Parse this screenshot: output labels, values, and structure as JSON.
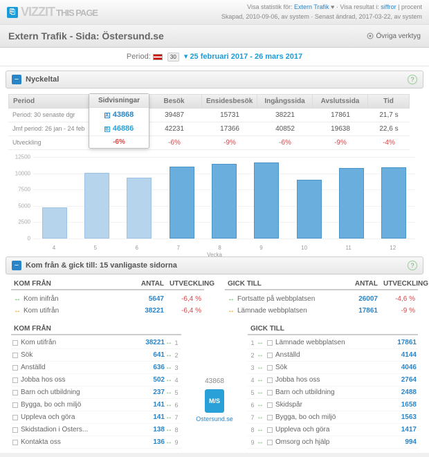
{
  "logo": {
    "text": "VIZZIT",
    "page": "THIS PAGE"
  },
  "topmeta": {
    "line1_a": "Visa statistik för:",
    "line1_link": "Extern Trafik",
    "line1_b": "Visa resultat i:",
    "line1_link2": "siffror",
    "line1_c": "procent",
    "line2": "Skapad, 2010-09-06, av system · Senast ändrad, 2017-03-22, av system"
  },
  "subtitle": "Extern Trafik - Sida: Östersund.se",
  "tools_label": "Övriga verktyg",
  "period": {
    "label": "Period:",
    "badge": "30",
    "dates": "25 februari 2017 - 26 mars 2017"
  },
  "nyckel": {
    "title": "Nyckeltal",
    "cols": [
      "Period",
      "Sidvisningar",
      "Besök",
      "Ensidesbesök",
      "Ingångssida",
      "Avslutssida",
      "Tid"
    ],
    "row1_lbl": "Period: 30 senaste dgr",
    "row2_lbl": "Jmf period: 26 jan - 24 feb",
    "row3_lbl": "Utveckling",
    "r1": [
      "43868",
      "39487",
      "15731",
      "38221",
      "17861",
      "21,7 s"
    ],
    "r2": [
      "46886",
      "42231",
      "17366",
      "40852",
      "19638",
      "22,6 s"
    ],
    "dev": [
      "-6%",
      "-6%",
      "-9%",
      "-6%",
      "-9%",
      "-4%"
    ],
    "popA": "A 43868",
    "popB": "B 46886"
  },
  "chart": {
    "ymax": 12500,
    "ystep": 2500,
    "yticks": [
      "0",
      "2500",
      "5000",
      "7500",
      "10000",
      "12500"
    ],
    "x": [
      "4",
      "5",
      "6",
      "7",
      "8",
      "9",
      "10",
      "11",
      "12"
    ],
    "xtitle": "Vecka",
    "vals": [
      4800,
      10100,
      9300,
      11000,
      11400,
      11700,
      9000,
      10800,
      10900
    ],
    "dark": [
      false,
      false,
      false,
      true,
      true,
      true,
      true,
      true,
      true
    ]
  },
  "kom": {
    "title": "Kom från & gick till: 15 vanligaste sidorna",
    "left_hd": [
      "KOM FRÅN",
      "ANTAL",
      "UTVECKLING"
    ],
    "right_hd": [
      "GICK TILL",
      "ANTAL",
      "UTVECKLING"
    ],
    "lrows": [
      {
        "ic": "green",
        "lbl": "Kom inifrån",
        "n": "5647",
        "d": "-6,4 %"
      },
      {
        "ic": "orange",
        "lbl": "Kom utifrån",
        "n": "38221",
        "d": "-6,4 %"
      }
    ],
    "rrows": [
      {
        "ic": "green",
        "lbl": "Fortsatte på webbplatsen",
        "n": "26007",
        "d": "-4,6 %"
      },
      {
        "ic": "orange",
        "lbl": "Lämnade webbplatsen",
        "n": "17861",
        "d": "-9 %"
      }
    ],
    "komlist_t": "KOM FRÅN",
    "gicklist_t": "GICK TILL",
    "komlist": [
      {
        "lbl": "Kom utifrån",
        "n": "38221",
        "r": "1"
      },
      {
        "lbl": "Sök",
        "n": "641",
        "r": "2"
      },
      {
        "lbl": "Anställd",
        "n": "636",
        "r": "3"
      },
      {
        "lbl": "Jobba hos oss",
        "n": "502",
        "r": "4"
      },
      {
        "lbl": "Barn och utbildning",
        "n": "237",
        "r": "5"
      },
      {
        "lbl": "Bygga, bo och miljö",
        "n": "141",
        "r": "6"
      },
      {
        "lbl": "Uppleva och göra",
        "n": "141",
        "r": "7"
      },
      {
        "lbl": "Skidstadion i Östers...",
        "n": "138",
        "r": "8"
      },
      {
        "lbl": "Kontakta oss",
        "n": "136",
        "r": "9"
      }
    ],
    "gicklist": [
      {
        "lbl": "Lämnade webbplatsen",
        "n": "17861",
        "r": "1"
      },
      {
        "lbl": "Anställd",
        "n": "4144",
        "r": "2"
      },
      {
        "lbl": "Sök",
        "n": "4046",
        "r": "3"
      },
      {
        "lbl": "Jobba hos oss",
        "n": "2764",
        "r": "4"
      },
      {
        "lbl": "Barn och utbildning",
        "n": "2488",
        "r": "5"
      },
      {
        "lbl": "Skidspår",
        "n": "1658",
        "r": "6"
      },
      {
        "lbl": "Bygga, bo och miljö",
        "n": "1563",
        "r": "7"
      },
      {
        "lbl": "Uppleva och göra",
        "n": "1417",
        "r": "8"
      },
      {
        "lbl": "Omsorg och hjälp",
        "n": "994",
        "r": "9"
      }
    ],
    "mid_n": "43868",
    "mid_ico": "M/S",
    "mid_lbl": "Ostersund.se"
  }
}
